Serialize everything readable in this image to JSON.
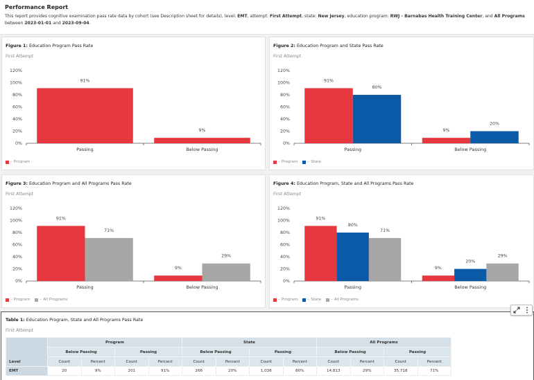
{
  "report": {
    "title": "Performance Report",
    "description_parts": [
      {
        "text": "This report provides cognitive examination pass rate data by cohort (see Description sheet for details), level: ",
        "bold": false
      },
      {
        "text": "EMT",
        "bold": true
      },
      {
        "text": ", attempt: ",
        "bold": false
      },
      {
        "text": "First Attempt",
        "bold": true
      },
      {
        "text": ", state: ",
        "bold": false
      },
      {
        "text": "New Jersey",
        "bold": true
      },
      {
        "text": ", education program: ",
        "bold": false
      },
      {
        "text": "RWJ - Barnabas Health Training Center",
        "bold": true
      },
      {
        "text": ", and ",
        "bold": false
      },
      {
        "text": "All Programs",
        "bold": true
      },
      {
        "text": " between ",
        "bold": false
      },
      {
        "text": "2023-01-01",
        "bold": true
      },
      {
        "text": " and ",
        "bold": false
      },
      {
        "text": "2023-09-04",
        "bold": true
      },
      {
        "text": ".",
        "bold": false
      }
    ]
  },
  "colors": {
    "program": "#e8383f",
    "state": "#0b5aa8",
    "all_programs": "#a6a6a6"
  },
  "chart_data": [
    {
      "type": "bar",
      "title_prefix": "Figure 1:",
      "title": "Education Program Pass Rate",
      "subtitle": "First Attempt",
      "categories": [
        "Passing",
        "Below Passing"
      ],
      "series": [
        {
          "name": "Program",
          "key": "program",
          "values": [
            91,
            9
          ]
        }
      ],
      "ylim": [
        0,
        120
      ],
      "yticks": [
        0,
        20,
        40,
        60,
        80,
        100,
        120
      ],
      "ytick_labels": [
        "0%",
        "20%",
        "40%",
        "60%",
        "80%",
        "100%",
        "120%"
      ],
      "data_labels": true,
      "value_suffix": "%",
      "legend": "bottom-left",
      "grid": false
    },
    {
      "type": "bar",
      "title_prefix": "Figure 2:",
      "title": "Education Program and State Pass Rate",
      "subtitle": "First Attempt",
      "categories": [
        "Passing",
        "Below Passing"
      ],
      "series": [
        {
          "name": "Program",
          "key": "program",
          "values": [
            91,
            9
          ]
        },
        {
          "name": "State",
          "key": "state",
          "values": [
            80,
            20
          ]
        }
      ],
      "ylim": [
        0,
        120
      ],
      "yticks": [
        0,
        20,
        40,
        60,
        80,
        100,
        120
      ],
      "ytick_labels": [
        "0%",
        "20%",
        "40%",
        "60%",
        "80%",
        "100%",
        "120%"
      ],
      "data_labels": true,
      "value_suffix": "%",
      "legend": "bottom-left",
      "grid": false
    },
    {
      "type": "bar",
      "title_prefix": "Figure 3:",
      "title": "Education Program and All Programs Pass Rate",
      "subtitle": "First Attempt",
      "categories": [
        "Passing",
        "Below Passing"
      ],
      "series": [
        {
          "name": "Program",
          "key": "program",
          "values": [
            91,
            9
          ]
        },
        {
          "name": "All Programs",
          "key": "all_programs",
          "values": [
            71,
            29
          ]
        }
      ],
      "ylim": [
        0,
        120
      ],
      "yticks": [
        0,
        20,
        40,
        60,
        80,
        100,
        120
      ],
      "ytick_labels": [
        "0%",
        "20%",
        "40%",
        "60%",
        "80%",
        "100%",
        "120%"
      ],
      "data_labels": true,
      "value_suffix": "%",
      "legend": "bottom-left",
      "grid": false
    },
    {
      "type": "bar",
      "title_prefix": "Figure 4:",
      "title": "Education Program, State and All Programs Pass Rate",
      "subtitle": "First Attempt",
      "categories": [
        "Passing",
        "Below Passing"
      ],
      "series": [
        {
          "name": "Program",
          "key": "program",
          "values": [
            91,
            9
          ]
        },
        {
          "name": "State",
          "key": "state",
          "values": [
            80,
            20
          ]
        },
        {
          "name": "All Programs",
          "key": "all_programs",
          "values": [
            71,
            29
          ]
        }
      ],
      "ylim": [
        0,
        120
      ],
      "yticks": [
        0,
        20,
        40,
        60,
        80,
        100,
        120
      ],
      "ytick_labels": [
        "0%",
        "20%",
        "40%",
        "60%",
        "80%",
        "100%",
        "120%"
      ],
      "data_labels": true,
      "value_suffix": "%",
      "legend": "bottom-left",
      "grid": false
    },
    {
      "type": "table",
      "title_prefix": "Table 1:",
      "title": "Education Program, State and All Programs Pass Rate",
      "subtitle": "First Attempt",
      "level_header": "Level",
      "groups": [
        "Program",
        "State",
        "All Programs"
      ],
      "subgroups": [
        "Below Passing",
        "Passing"
      ],
      "columns": [
        "Count",
        "Percent"
      ],
      "rows": [
        {
          "level": "EMT",
          "cells": [
            "20",
            "9%",
            "201",
            "91%",
            "266",
            "20%",
            "1,036",
            "80%",
            "14,813",
            "29%",
            "35,718",
            "71%"
          ]
        }
      ]
    }
  ],
  "toolbar": {
    "expand_icon": "expand-icon",
    "more_icon": "more-vertical-icon"
  }
}
